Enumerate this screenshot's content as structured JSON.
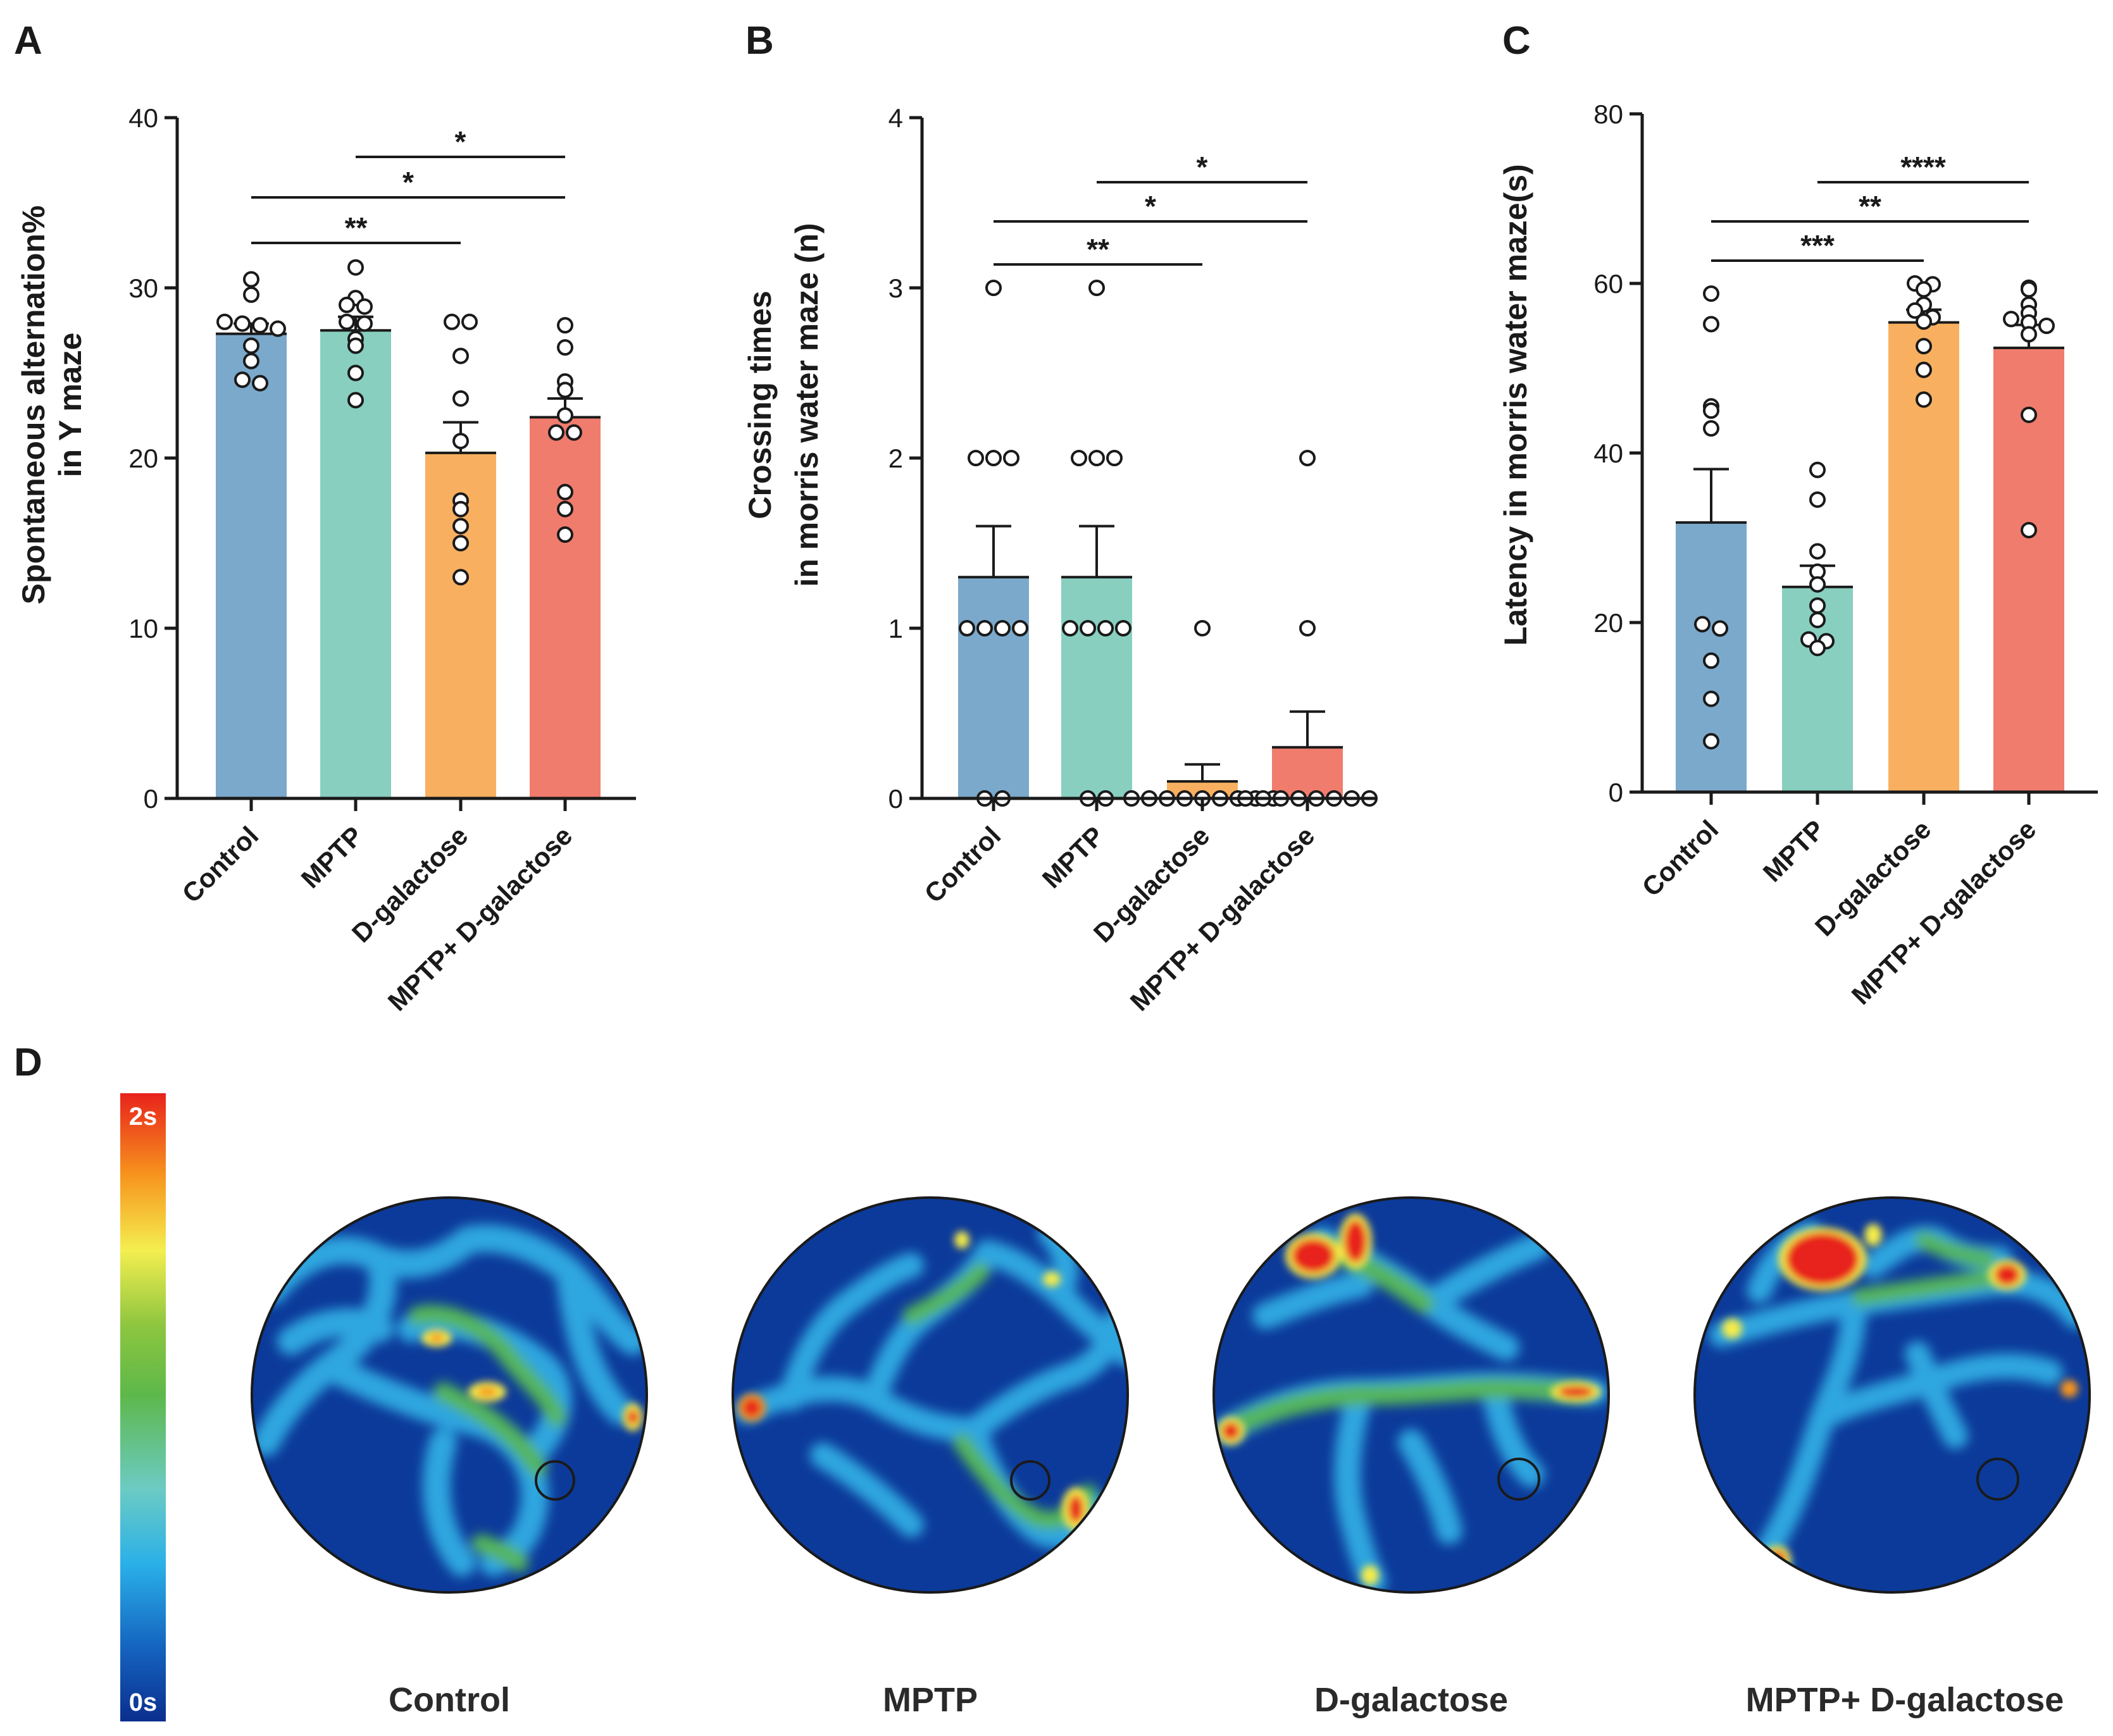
{
  "panel_letters": [
    "A",
    "B",
    "C",
    "D"
  ],
  "colors": {
    "control": "#7ba9cb",
    "mptp": "#88cfc0",
    "dgal": "#f8b060",
    "combo": "#f07c6d"
  },
  "chart_data": [
    {
      "panel": "A",
      "type": "bar",
      "ylabel_line1": "Spontaneous alternation%",
      "ylabel_line2": "in Y maze",
      "ylim": [
        0,
        40
      ],
      "yticks": [
        0,
        10,
        20,
        30,
        40
      ],
      "categories": [
        "Control",
        "MPTP",
        "D-galactose",
        "MPTP+ D-galactose"
      ],
      "values": [
        27.3,
        27.5,
        20.3,
        22.4
      ],
      "sem": [
        0.6,
        0.8,
        1.8,
        1.1
      ],
      "points": [
        [
          30.5,
          29.6,
          28.0,
          27.9,
          27.8,
          27.6,
          26.6,
          25.7,
          24.6,
          24.4
        ],
        [
          31.2,
          29.4,
          29.0,
          28.9,
          28.0,
          27.9,
          27.0,
          26.6,
          25.0,
          23.4
        ],
        [
          28.0,
          28.0,
          26.0,
          23.5,
          21.0,
          17.5,
          17.0,
          16.0,
          15.0,
          13.0
        ],
        [
          27.8,
          26.5,
          24.5,
          24.0,
          22.5,
          21.5,
          21.5,
          18.0,
          17.0,
          15.5
        ]
      ],
      "significance": [
        {
          "from": 1,
          "to": 3,
          "label": "*"
        },
        {
          "from": 0,
          "to": 3,
          "label": "*"
        },
        {
          "from": 0,
          "to": 2,
          "label": "**"
        }
      ]
    },
    {
      "panel": "B",
      "type": "bar",
      "ylabel_line1": "Crossing times",
      "ylabel_line2": "in morris water maze (n)",
      "ylim": [
        0,
        4
      ],
      "yticks": [
        0,
        1,
        2,
        3,
        4
      ],
      "categories": [
        "Control",
        "MPTP",
        "D-galactose",
        "MPTP+ D-galactose"
      ],
      "values": [
        1.3,
        1.3,
        0.1,
        0.3
      ],
      "sem": [
        0.3,
        0.3,
        0.1,
        0.21
      ],
      "points": [
        [
          3,
          2,
          2,
          2,
          1,
          1,
          1,
          1,
          0,
          0
        ],
        [
          3,
          2,
          2,
          2,
          1,
          1,
          1,
          1,
          0,
          0
        ],
        [
          1,
          0,
          0,
          0,
          0,
          0,
          0,
          0,
          0,
          0
        ],
        [
          2,
          1,
          0,
          0,
          0,
          0,
          0,
          0,
          0,
          0
        ]
      ],
      "significance": [
        {
          "from": 1,
          "to": 3,
          "label": "*"
        },
        {
          "from": 0,
          "to": 3,
          "label": "*"
        },
        {
          "from": 0,
          "to": 2,
          "label": "**"
        }
      ]
    },
    {
      "panel": "C",
      "type": "bar",
      "ylabel_line1": "Latency in morris water maze(s)",
      "ylabel_line2": "",
      "ylim": [
        0,
        80
      ],
      "yticks": [
        0,
        20,
        40,
        60,
        80
      ],
      "categories": [
        "Control",
        "MPTP",
        "D-galactose",
        "MPTP+ D-galactose"
      ],
      "values": [
        31.8,
        24.2,
        55.4,
        52.4
      ],
      "sem": [
        6.3,
        2.5,
        1.5,
        2.7
      ],
      "points": [
        [
          58.8,
          55.2,
          45.5,
          45.0,
          42.9,
          19.8,
          19.3,
          15.5,
          11.0,
          6.0
        ],
        [
          38.0,
          34.5,
          28.4,
          26.0,
          24.5,
          22.0,
          20.3,
          18.0,
          17.8,
          17.0
        ],
        [
          60.0,
          59.9,
          59.3,
          57.5,
          56.8,
          56.0,
          55.5,
          52.6,
          49.8,
          46.3
        ],
        [
          59.5,
          59.3,
          57.5,
          56.5,
          55.8,
          55.4,
          55.0,
          54.0,
          44.5,
          30.9
        ]
      ],
      "significance": [
        {
          "from": 1,
          "to": 3,
          "label": "****"
        },
        {
          "from": 0,
          "to": 3,
          "label": "**"
        },
        {
          "from": 0,
          "to": 2,
          "label": "***"
        }
      ]
    }
  ],
  "heatmap": {
    "colorbar_max": "2s",
    "colorbar_min": "0s",
    "labels": [
      "Control",
      "MPTP",
      "D-galactose",
      "MPTP+ D-galactose"
    ]
  }
}
